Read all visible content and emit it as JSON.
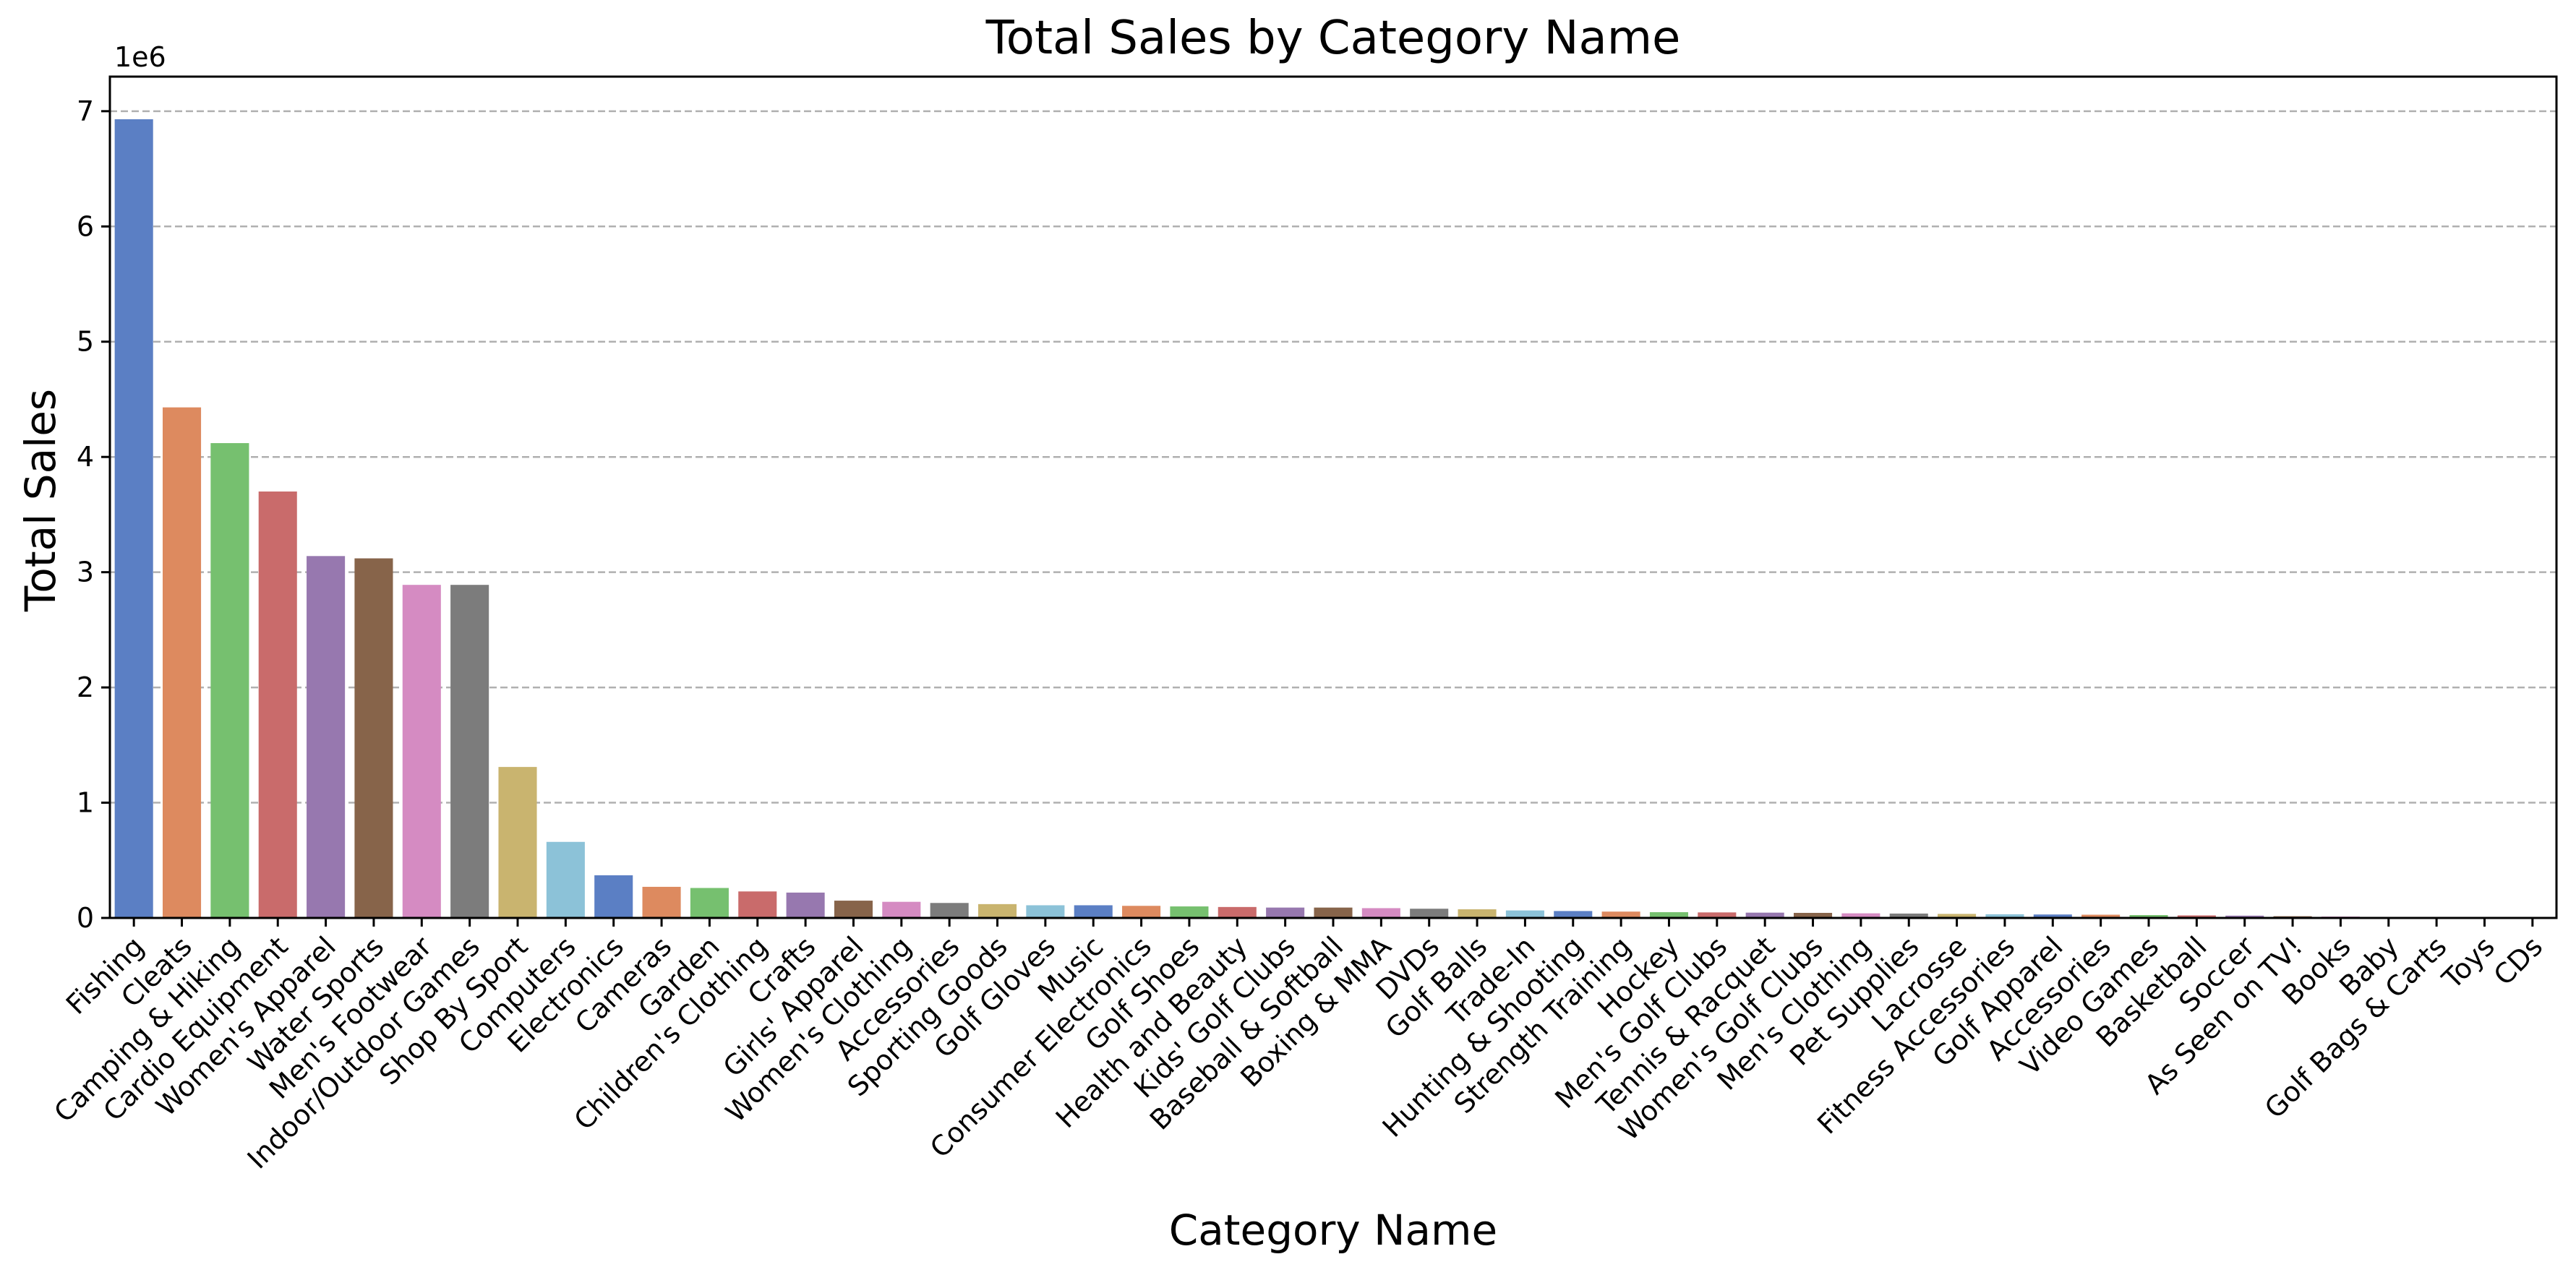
{
  "chart_data": {
    "type": "bar",
    "title": "Total Sales by Category Name",
    "xlabel": "Category Name",
    "ylabel": "Total Sales",
    "y_scale_label": "1e6",
    "ylim": [
      0,
      7.3
    ],
    "yticks": [
      {
        "value": 0,
        "label": "0"
      },
      {
        "value": 1,
        "label": "1"
      },
      {
        "value": 2,
        "label": "2"
      },
      {
        "value": 3,
        "label": "3"
      },
      {
        "value": 4,
        "label": "4"
      },
      {
        "value": 5,
        "label": "5"
      },
      {
        "value": 6,
        "label": "6"
      },
      {
        "value": 7,
        "label": "7"
      }
    ],
    "grid": "y-dashed",
    "palette": [
      "#5b7fc4",
      "#dd8a5f",
      "#76c06f",
      "#c96b6b",
      "#9778af",
      "#87644a",
      "#d58bc2",
      "#7c7c7c",
      "#c9b46f",
      "#8cc2d8"
    ],
    "categories": [
      "Fishing",
      "Cleats",
      "Camping & Hiking",
      "Cardio Equipment",
      "Women's Apparel",
      "Water Sports",
      "Men's Footwear",
      "Indoor/Outdoor Games",
      "Shop By Sport",
      "Computers",
      "Electronics",
      "Cameras",
      "Garden",
      "Children's Clothing",
      "Crafts",
      "Girls' Apparel",
      "Women's Clothing",
      "Accessories",
      "Sporting Goods",
      "Golf Gloves",
      "Music",
      "Consumer Electronics",
      "Golf Shoes",
      "Health and Beauty",
      "Kids' Golf Clubs",
      "Baseball & Softball",
      "Boxing & MMA",
      "DVDs",
      "Golf Balls",
      "Trade-In",
      "Hunting & Shooting",
      "Strength Training",
      "Hockey",
      "Men's Golf Clubs",
      "Tennis & Racquet",
      "Women's Golf Clubs",
      "Men's Clothing",
      "Pet Supplies",
      "Lacrosse",
      "Fitness Accessories",
      "Golf Apparel",
      "Accessories",
      "Video Games",
      "Basketball",
      "Soccer",
      "As Seen on TV!",
      "Books",
      "Baby",
      "Golf Bags & Carts",
      "Toys",
      "CDs"
    ],
    "values": [
      6.93,
      4.43,
      4.12,
      3.7,
      3.14,
      3.12,
      2.89,
      2.89,
      1.31,
      0.66,
      0.37,
      0.27,
      0.26,
      0.23,
      0.22,
      0.15,
      0.14,
      0.13,
      0.12,
      0.11,
      0.11,
      0.105,
      0.1,
      0.095,
      0.09,
      0.09,
      0.085,
      0.08,
      0.075,
      0.065,
      0.06,
      0.055,
      0.05,
      0.048,
      0.046,
      0.044,
      0.04,
      0.038,
      0.035,
      0.032,
      0.03,
      0.028,
      0.025,
      0.022,
      0.02,
      0.015,
      0.012,
      0.008,
      0.006,
      0.004,
      0.003
    ]
  }
}
